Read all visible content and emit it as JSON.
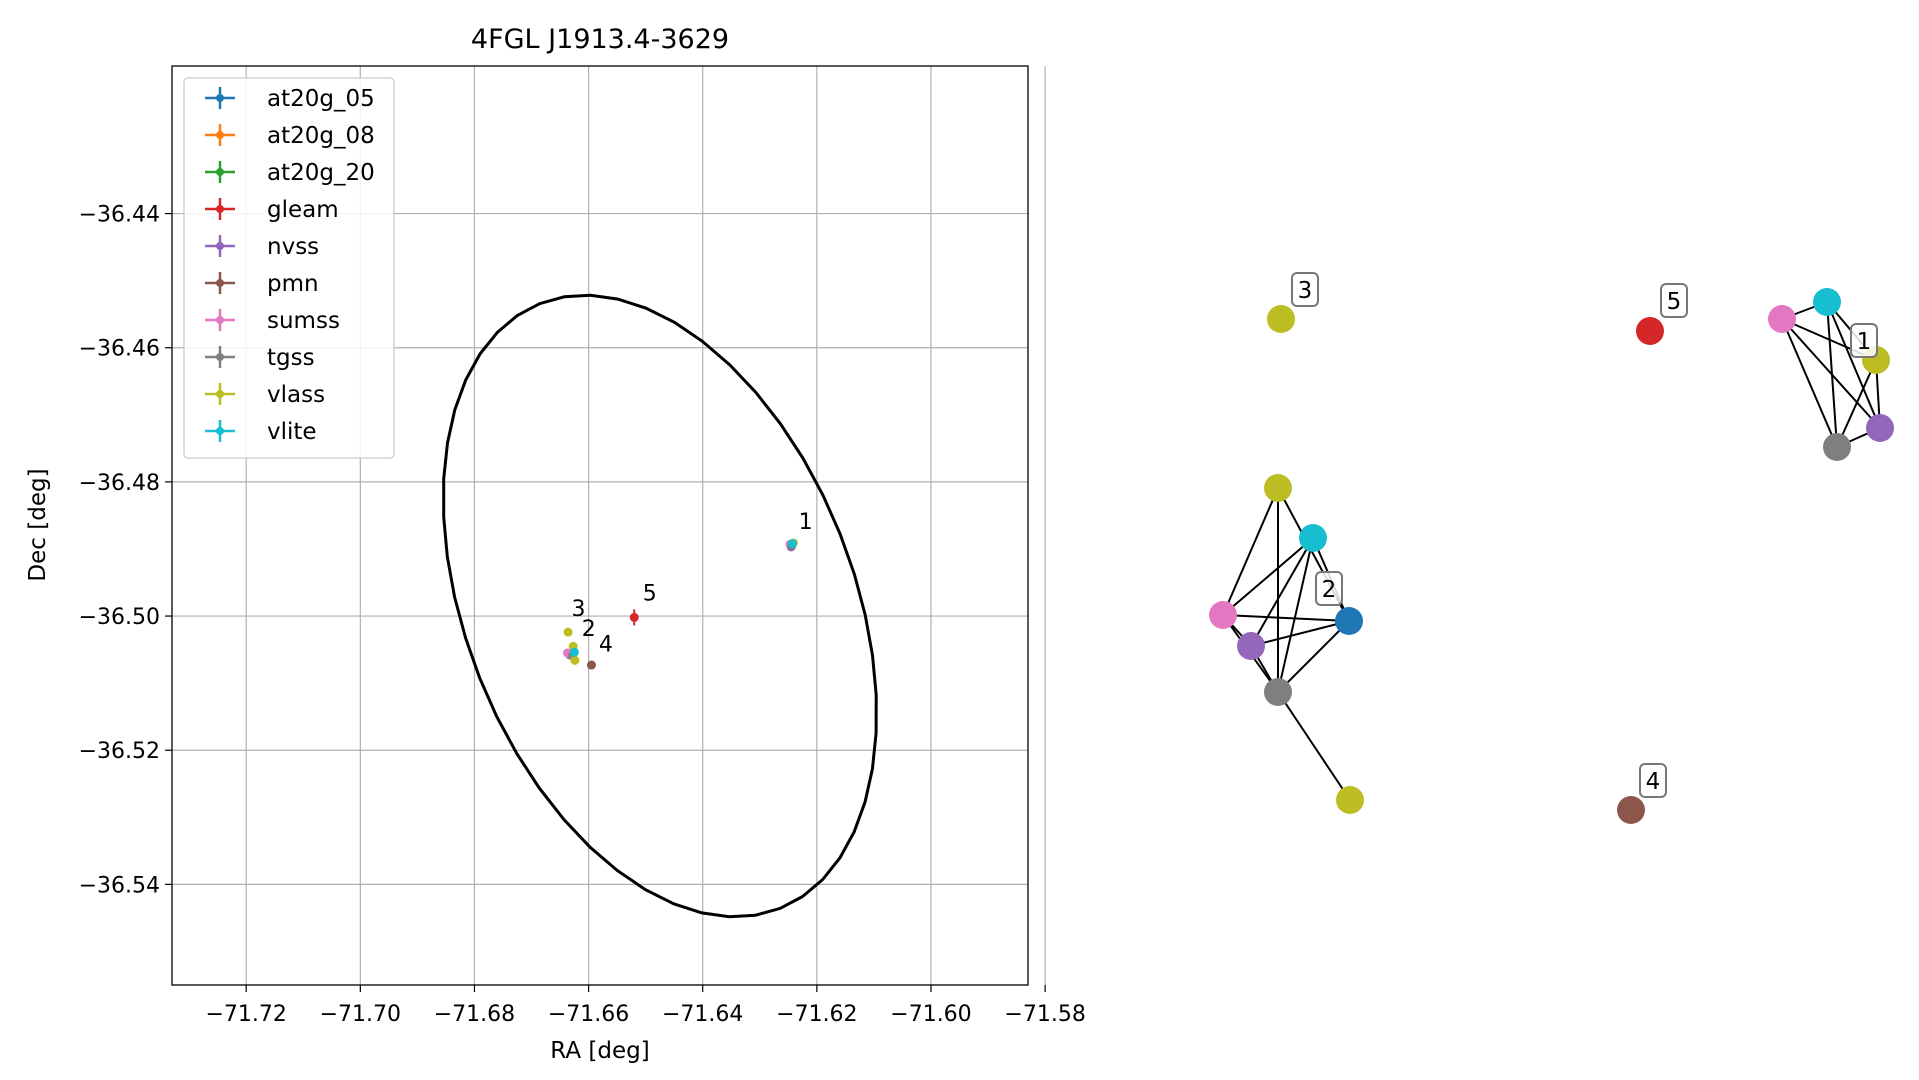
{
  "chart_data": [
    {
      "type": "scatter",
      "title": "4FGL J1913.4-3629",
      "xlabel": "RA [deg]",
      "ylabel": "Dec [deg]",
      "xlim": [
        -71.733,
        -71.583
      ],
      "ylim": [
        -36.555,
        -36.418
      ],
      "grid": true,
      "legend_position": "upper-left",
      "x_ticks": [
        -71.72,
        -71.7,
        -71.68,
        -71.66,
        -71.64,
        -71.62,
        -71.6,
        -71.58
      ],
      "x_tick_labels": [
        "−71.72",
        "−71.70",
        "−71.68",
        "−71.66",
        "−71.64",
        "−71.62",
        "−71.60",
        "−71.58"
      ],
      "y_ticks": [
        -36.44,
        -36.46,
        -36.48,
        -36.5,
        -36.52,
        -36.54
      ],
      "y_tick_labels": [
        "−36.44",
        "−36.46",
        "−36.48",
        "−36.50",
        "−36.52",
        "−36.54"
      ],
      "ellipse": {
        "center": [
          -71.6475,
          -36.4985
        ],
        "ra_semi": 0.05,
        "dec_semi": 0.033,
        "tilt_deg": -60,
        "color": "#000000"
      },
      "series": [
        {
          "name": "at20g_05",
          "color": "#1f77b4",
          "points": [
            [
              -71.6628,
              -36.5055
            ]
          ]
        },
        {
          "name": "at20g_08",
          "color": "#ff7f0e",
          "points": [
            [
              -71.6628,
              -36.5055
            ]
          ]
        },
        {
          "name": "at20g_20",
          "color": "#2ca02c",
          "points": [
            [
              -71.6628,
              -36.5055
            ]
          ]
        },
        {
          "name": "gleam",
          "color": "#d62728",
          "points": [
            [
              -71.652,
              -36.5002
            ]
          ]
        },
        {
          "name": "nvss",
          "color": "#9467bd",
          "points": [
            [
              -71.6245,
              -36.4897
            ],
            [
              -71.6633,
              -36.5058
            ]
          ]
        },
        {
          "name": "pmn",
          "color": "#8c564b",
          "points": [
            [
              -71.6595,
              -36.5073
            ]
          ]
        },
        {
          "name": "sumss",
          "color": "#e377c2",
          "points": [
            [
              -71.6247,
              -36.4893
            ],
            [
              -71.6637,
              -36.5055
            ]
          ]
        },
        {
          "name": "tgss",
          "color": "#7f7f7f",
          "points": [
            [
              -71.6244,
              -36.4895
            ],
            [
              -71.6628,
              -36.5059
            ]
          ]
        },
        {
          "name": "vlass",
          "color": "#bcbd22",
          "points": [
            [
              -71.6241,
              -36.4891
            ],
            [
              -71.6636,
              -36.5024
            ],
            [
              -71.6627,
              -36.5045
            ],
            [
              -71.6624,
              -36.5066
            ]
          ]
        },
        {
          "name": "vlite",
          "color": "#17becf",
          "points": [
            [
              -71.6243,
              -36.4892
            ],
            [
              -71.6625,
              -36.5054
            ]
          ]
        }
      ],
      "annotations": [
        {
          "text": "1",
          "x": -71.6232,
          "y": -36.487
        },
        {
          "text": "2",
          "x": -71.6612,
          "y": -36.503
        },
        {
          "text": "3",
          "x": -71.663,
          "y": -36.5
        },
        {
          "text": "4",
          "x": -71.6582,
          "y": -36.5053
        },
        {
          "text": "5",
          "x": -71.6505,
          "y": -36.4977
        }
      ]
    },
    {
      "type": "network",
      "nodes": [
        {
          "id": "n1",
          "color": "#bcbd22"
        },
        {
          "id": "n2",
          "color": "#17becf"
        },
        {
          "id": "n3",
          "color": "#e377c2"
        },
        {
          "id": "n4",
          "color": "#1f77b4"
        },
        {
          "id": "n5",
          "color": "#9467bd"
        },
        {
          "id": "n6",
          "color": "#7f7f7f"
        },
        {
          "id": "n7",
          "color": "#bcbd22"
        },
        {
          "id": "n8",
          "color": "#bcbd22"
        },
        {
          "id": "n9",
          "color": "#d62728"
        },
        {
          "id": "n10",
          "color": "#8c564b"
        },
        {
          "id": "n11",
          "color": "#e377c2"
        },
        {
          "id": "n12",
          "color": "#17becf"
        },
        {
          "id": "n13",
          "color": "#bcbd22"
        },
        {
          "id": "n14",
          "color": "#9467bd"
        },
        {
          "id": "n15",
          "color": "#7f7f7f"
        }
      ],
      "edges": [
        [
          "n3",
          "n1"
        ],
        [
          "n3",
          "n2"
        ],
        [
          "n3",
          "n4"
        ],
        [
          "n3",
          "n5"
        ],
        [
          "n3",
          "n6"
        ],
        [
          "n1",
          "n4"
        ],
        [
          "n1",
          "n6"
        ],
        [
          "n2",
          "n4"
        ],
        [
          "n2",
          "n5"
        ],
        [
          "n2",
          "n6"
        ],
        [
          "n4",
          "n5"
        ],
        [
          "n4",
          "n6"
        ],
        [
          "n5",
          "n6"
        ],
        [
          "n6",
          "n7"
        ],
        [
          "n11",
          "n12"
        ],
        [
          "n11",
          "n13"
        ],
        [
          "n11",
          "n14"
        ],
        [
          "n11",
          "n15"
        ],
        [
          "n12",
          "n13"
        ],
        [
          "n12",
          "n14"
        ],
        [
          "n12",
          "n15"
        ],
        [
          "n13",
          "n14"
        ],
        [
          "n13",
          "n15"
        ],
        [
          "n14",
          "n15"
        ]
      ],
      "labels": [
        {
          "text": "1"
        },
        {
          "text": "2"
        },
        {
          "text": "3"
        },
        {
          "text": "4"
        },
        {
          "text": "5"
        }
      ]
    }
  ]
}
